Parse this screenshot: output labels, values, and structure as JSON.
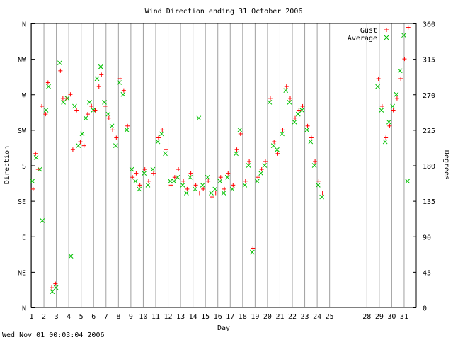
{
  "chart_data": {
    "type": "scatter",
    "title": "Wind Direction ending 31 October 2006",
    "xlabel": "Day",
    "ylabel_left": "Direction",
    "ylabel_right": "Degrees",
    "timestamp": "Wed Nov 01 00:03:04 2006",
    "xlim": [
      1,
      32
    ],
    "ylim": [
      0,
      360
    ],
    "x_ticks": [
      "1",
      "2",
      "3",
      "4",
      "5",
      "6",
      "7",
      "8",
      "9",
      "10",
      "11",
      "12",
      "13",
      "14",
      "15",
      "16",
      "17",
      "18",
      "19",
      "20",
      "21",
      "22",
      "23",
      "24",
      "25",
      "28",
      "29",
      "30",
      "31"
    ],
    "x_tick_values": [
      1,
      2,
      3,
      4,
      5,
      6,
      7,
      8,
      9,
      10,
      11,
      12,
      13,
      14,
      15,
      16,
      17,
      18,
      19,
      20,
      21,
      22,
      23,
      24,
      25,
      28,
      29,
      30,
      31
    ],
    "y_ticks_left": [
      "N",
      "NE",
      "E",
      "SE",
      "S",
      "SW",
      "W",
      "NW",
      "N"
    ],
    "y_ticks_right": [
      "0",
      "45",
      "90",
      "135",
      "180",
      "225",
      "270",
      "315",
      "360"
    ],
    "y_tick_values": [
      0,
      45,
      90,
      135,
      180,
      225,
      270,
      315,
      360
    ],
    "legend": {
      "position": "top-right",
      "entries": [
        "Gust",
        "Average"
      ]
    },
    "colors": {
      "gust": "#ff0000",
      "average": "#00c000",
      "overlap": "#8b5a00",
      "grid": "#a0a0a0"
    },
    "series": [
      {
        "name": "Gust",
        "marker": "+",
        "color": "#ff0000",
        "points": [
          [
            1.1,
            150
          ],
          [
            1.3,
            195
          ],
          [
            1.5,
            175
          ],
          [
            1.8,
            255
          ],
          [
            2.1,
            245
          ],
          [
            2.3,
            285
          ],
          [
            2.6,
            25
          ],
          [
            2.9,
            30
          ],
          [
            3.3,
            300
          ],
          [
            3.5,
            265
          ],
          [
            3.8,
            265
          ],
          [
            4.1,
            270
          ],
          [
            4.3,
            200
          ],
          [
            4.6,
            250
          ],
          [
            4.9,
            210
          ],
          [
            5.2,
            205
          ],
          [
            5.5,
            245
          ],
          [
            5.8,
            255
          ],
          [
            6.1,
            250
          ],
          [
            6.4,
            280
          ],
          [
            6.6,
            295
          ],
          [
            6.9,
            255
          ],
          [
            7.2,
            240
          ],
          [
            7.5,
            225
          ],
          [
            7.8,
            215
          ],
          [
            8.1,
            290
          ],
          [
            8.4,
            275
          ],
          [
            8.7,
            230
          ],
          [
            9.1,
            165
          ],
          [
            9.4,
            170
          ],
          [
            9.7,
            155
          ],
          [
            10.1,
            175
          ],
          [
            10.4,
            160
          ],
          [
            10.8,
            170
          ],
          [
            11.2,
            215
          ],
          [
            11.5,
            225
          ],
          [
            11.8,
            200
          ],
          [
            12.2,
            155
          ],
          [
            12.5,
            165
          ],
          [
            12.8,
            175
          ],
          [
            13.2,
            160
          ],
          [
            13.5,
            150
          ],
          [
            13.8,
            170
          ],
          [
            14.2,
            155
          ],
          [
            14.5,
            145
          ],
          [
            14.8,
            150
          ],
          [
            15.2,
            160
          ],
          [
            15.5,
            140
          ],
          [
            15.8,
            145
          ],
          [
            16.2,
            165
          ],
          [
            16.5,
            150
          ],
          [
            16.8,
            170
          ],
          [
            17.2,
            155
          ],
          [
            17.5,
            200
          ],
          [
            17.8,
            220
          ],
          [
            18.2,
            160
          ],
          [
            18.5,
            185
          ],
          [
            18.8,
            75
          ],
          [
            19.2,
            165
          ],
          [
            19.5,
            175
          ],
          [
            19.8,
            185
          ],
          [
            20.2,
            265
          ],
          [
            20.5,
            210
          ],
          [
            20.8,
            195
          ],
          [
            21.2,
            225
          ],
          [
            21.5,
            280
          ],
          [
            21.8,
            265
          ],
          [
            22.2,
            240
          ],
          [
            22.5,
            250
          ],
          [
            22.8,
            255
          ],
          [
            23.2,
            230
          ],
          [
            23.5,
            215
          ],
          [
            23.8,
            185
          ],
          [
            24.1,
            160
          ],
          [
            24.4,
            145
          ],
          [
            28.9,
            290
          ],
          [
            29.2,
            255
          ],
          [
            29.5,
            215
          ],
          [
            29.8,
            230
          ],
          [
            30.1,
            250
          ],
          [
            30.4,
            265
          ],
          [
            30.7,
            290
          ],
          [
            31.0,
            315
          ],
          [
            31.3,
            355
          ]
        ]
      },
      {
        "name": "Average",
        "marker": "x",
        "color": "#00c000",
        "points": [
          [
            1.1,
            160
          ],
          [
            1.4,
            190
          ],
          [
            1.7,
            175
          ],
          [
            1.9,
            110
          ],
          [
            2.2,
            250
          ],
          [
            2.4,
            280
          ],
          [
            2.7,
            20
          ],
          [
            3.0,
            25
          ],
          [
            3.3,
            310
          ],
          [
            3.6,
            260
          ],
          [
            3.9,
            265
          ],
          [
            4.2,
            65
          ],
          [
            4.5,
            255
          ],
          [
            4.8,
            205
          ],
          [
            5.1,
            220
          ],
          [
            5.4,
            240
          ],
          [
            5.7,
            260
          ],
          [
            6.0,
            250
          ],
          [
            6.3,
            290
          ],
          [
            6.6,
            305
          ],
          [
            6.9,
            260
          ],
          [
            7.2,
            245
          ],
          [
            7.5,
            230
          ],
          [
            7.8,
            205
          ],
          [
            8.1,
            285
          ],
          [
            8.4,
            270
          ],
          [
            8.7,
            225
          ],
          [
            9.1,
            175
          ],
          [
            9.4,
            160
          ],
          [
            9.7,
            150
          ],
          [
            10.1,
            170
          ],
          [
            10.4,
            155
          ],
          [
            10.8,
            175
          ],
          [
            11.2,
            210
          ],
          [
            11.5,
            220
          ],
          [
            11.8,
            195
          ],
          [
            12.2,
            160
          ],
          [
            12.5,
            160
          ],
          [
            12.8,
            165
          ],
          [
            13.2,
            155
          ],
          [
            13.5,
            145
          ],
          [
            13.8,
            165
          ],
          [
            14.2,
            150
          ],
          [
            14.5,
            240
          ],
          [
            14.8,
            155
          ],
          [
            15.2,
            165
          ],
          [
            15.5,
            145
          ],
          [
            15.8,
            150
          ],
          [
            16.2,
            160
          ],
          [
            16.5,
            145
          ],
          [
            16.8,
            165
          ],
          [
            17.2,
            150
          ],
          [
            17.5,
            195
          ],
          [
            17.8,
            225
          ],
          [
            18.2,
            155
          ],
          [
            18.5,
            180
          ],
          [
            18.8,
            70
          ],
          [
            19.2,
            160
          ],
          [
            19.5,
            170
          ],
          [
            19.8,
            180
          ],
          [
            20.2,
            260
          ],
          [
            20.5,
            205
          ],
          [
            20.8,
            200
          ],
          [
            21.2,
            220
          ],
          [
            21.5,
            275
          ],
          [
            21.8,
            260
          ],
          [
            22.2,
            235
          ],
          [
            22.5,
            245
          ],
          [
            22.8,
            250
          ],
          [
            23.2,
            225
          ],
          [
            23.5,
            210
          ],
          [
            23.8,
            180
          ],
          [
            24.1,
            155
          ],
          [
            24.4,
            140
          ],
          [
            28.9,
            280
          ],
          [
            29.2,
            250
          ],
          [
            29.5,
            210
          ],
          [
            29.8,
            235
          ],
          [
            30.1,
            255
          ],
          [
            30.4,
            270
          ],
          [
            30.7,
            300
          ],
          [
            31.0,
            345
          ],
          [
            31.3,
            160
          ]
        ]
      }
    ]
  }
}
